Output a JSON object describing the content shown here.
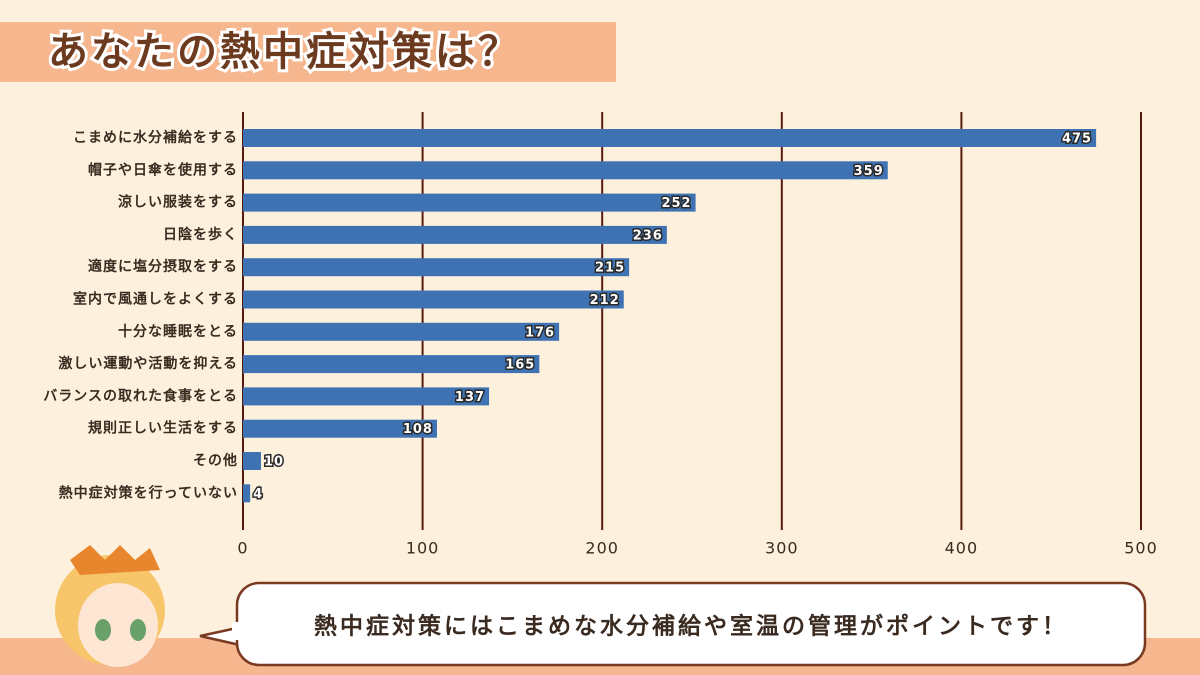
{
  "chart_data": {
    "type": "bar",
    "orientation": "horizontal",
    "title": "あなたの熱中症対策は？",
    "annotation": "熱中症対策にはこまめな水分補給や室温の管理がポイントです！",
    "categories": [
      "こまめに水分補給をする",
      "帽子や日傘を使用する",
      "涼しい服装をする",
      "日陰を歩く",
      "適度に塩分摂取をする",
      "室内で風通しをよくする",
      "十分な睡眠をとる",
      "激しい運動や活動を抑える",
      "バランスの取れた食事をとる",
      "規則正しい生活をする",
      "その他",
      "熱中症対策を行っていない"
    ],
    "values": [
      475,
      359,
      252,
      236,
      215,
      212,
      176,
      165,
      137,
      108,
      10,
      4
    ],
    "color": "#3e72b2",
    "xlim": [
      0,
      500
    ],
    "xticks": [
      0,
      100,
      200,
      300,
      400,
      500
    ],
    "grid": true
  }
}
